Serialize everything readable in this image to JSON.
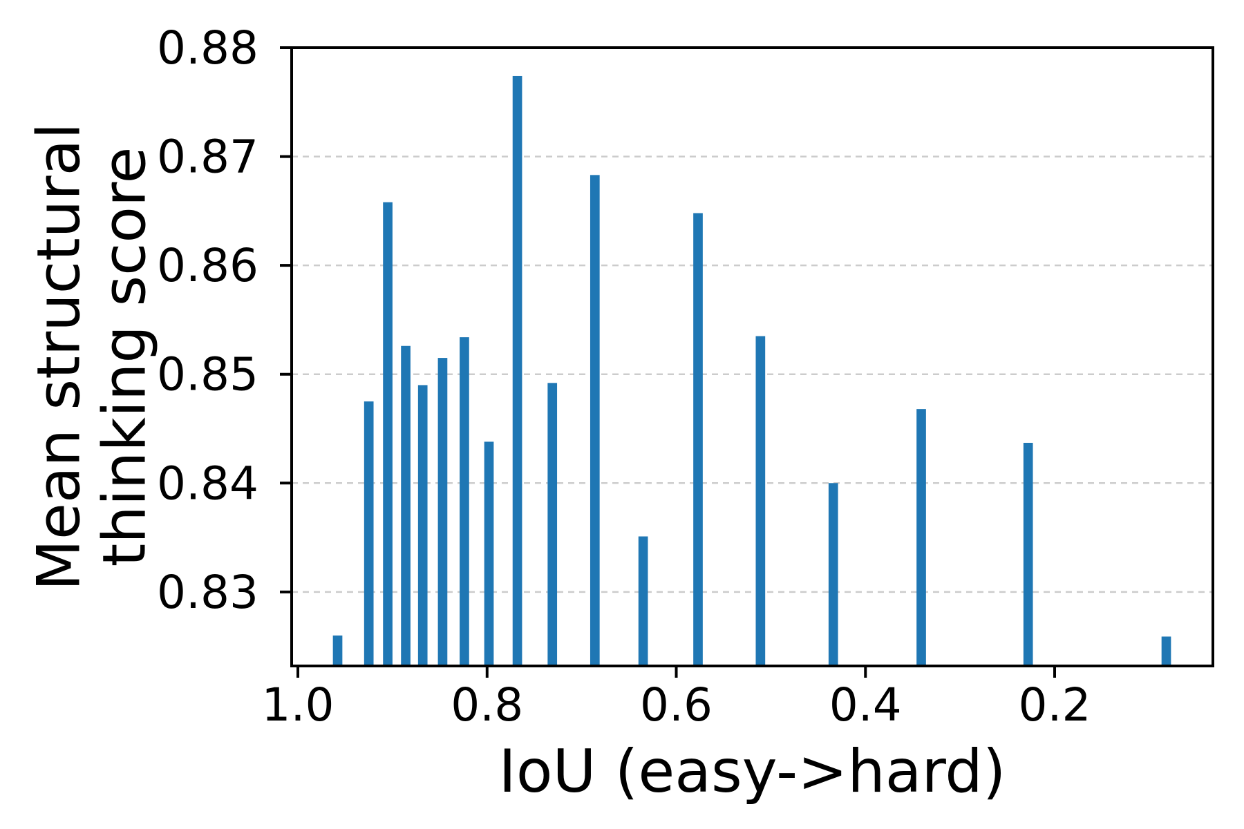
{
  "chart_data": {
    "type": "bar",
    "title": "",
    "xlabel": "IoU (easy->hard)",
    "ylabel_lines": [
      "Mean structural",
      "thinking score"
    ],
    "x": [
      0.958,
      0.925,
      0.905,
      0.886,
      0.868,
      0.847,
      0.824,
      0.798,
      0.768,
      0.731,
      0.686,
      0.635,
      0.577,
      0.511,
      0.434,
      0.341,
      0.228,
      0.082
    ],
    "values": [
      0.826,
      0.8475,
      0.8658,
      0.8526,
      0.849,
      0.8515,
      0.8534,
      0.8438,
      0.8774,
      0.8492,
      0.8683,
      0.8351,
      0.8648,
      0.8535,
      0.84,
      0.8468,
      0.8437,
      0.8259
    ],
    "bar_width_data": 0.01,
    "bar_color": "#1f77b4",
    "x_ticks": [
      1.0,
      0.8,
      0.6,
      0.4,
      0.2
    ],
    "x_tick_labels": [
      "1.0",
      "0.8",
      "0.6",
      "0.4",
      "0.2"
    ],
    "y_ticks": [
      0.83,
      0.84,
      0.85,
      0.86,
      0.87,
      0.88
    ],
    "y_tick_labels": [
      "0.83",
      "0.84",
      "0.85",
      "0.86",
      "0.87",
      "0.88"
    ],
    "xlim": [
      1.0066,
      0.0327
    ],
    "ylim": [
      0.8232,
      0.88
    ],
    "x_axis_reversed": true,
    "grid": "y-dashed",
    "grid_color": "#cccccc",
    "axis_color": "#000000",
    "background": "#ffffff",
    "legend": "none"
  }
}
